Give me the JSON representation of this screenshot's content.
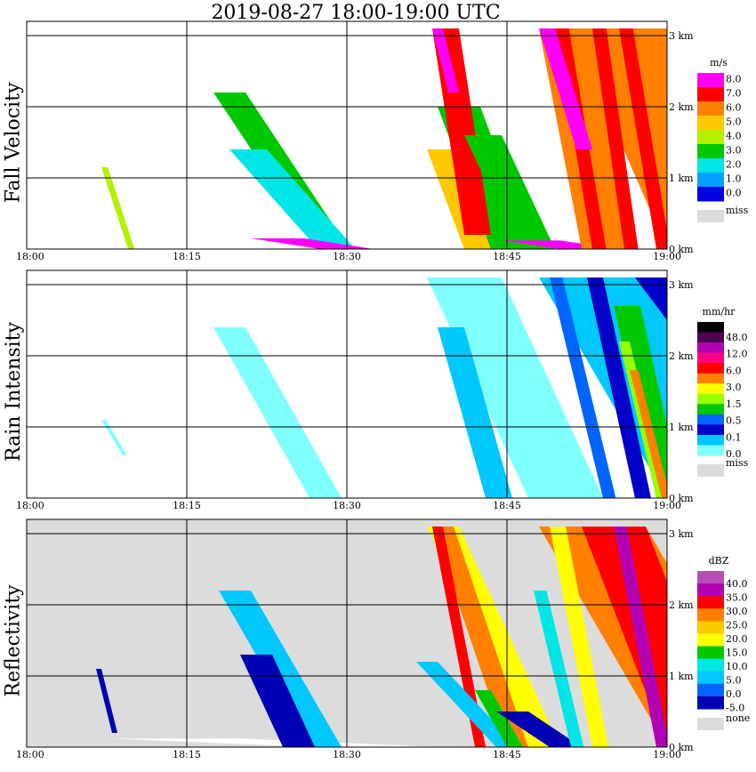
{
  "title": "2019-08-27   18:00-19:00 UTC",
  "chart_data": [
    {
      "type": "heatmap",
      "panel_label": "Fall Velocity",
      "x_ticks": [
        "18:00",
        "18:15",
        "18:30",
        "18:45",
        "19:00"
      ],
      "y_ticks": [
        "0 km",
        "1 km",
        "2 km",
        "3 km"
      ],
      "unit": "m/s",
      "legend": {
        "labels": [
          "8.0",
          "7.0",
          "6.0",
          "5.0",
          "4.0",
          "3.0",
          "2.0",
          "1.0",
          "0.0"
        ],
        "colors": [
          "#ff00ff",
          "#ff0000",
          "#ff8000",
          "#ffc800",
          "#b4f000",
          "#00c800",
          "#00e6e6",
          "#00a0ff",
          "#0000e0"
        ],
        "missing_label": "miss",
        "missing_color": "#dcdcdc"
      },
      "background": "#ffffff",
      "echoes": [
        {
          "t0": 7.0,
          "t1": 9.5,
          "h0": 0.0,
          "h1": 1.15,
          "w": 0.6,
          "color": "#b4f000"
        },
        {
          "t0": 17.5,
          "t1": 27.0,
          "h0": 0.05,
          "h1": 2.2,
          "w": 3.0,
          "color": "#00c800"
        },
        {
          "t0": 19.0,
          "t1": 27.0,
          "h0": 0.05,
          "h1": 1.4,
          "w": 3.5,
          "color": "#00e6e6"
        },
        {
          "t0": 21.0,
          "t1": 27.5,
          "h0": 0.0,
          "h1": 0.15,
          "w": 5.0,
          "color": "#ff00ff"
        },
        {
          "t0": 37.5,
          "t1": 41.0,
          "h0": 0.0,
          "h1": 1.4,
          "w": 4.5,
          "color": "#ffc800"
        },
        {
          "t0": 38.5,
          "t1": 43.5,
          "h0": 0.0,
          "h1": 2.0,
          "w": 4.0,
          "color": "#00c800"
        },
        {
          "t0": 38.0,
          "t1": 41.0,
          "h0": 0.2,
          "h1": 3.1,
          "w": 2.5,
          "color": "#ff0000"
        },
        {
          "t0": 38.0,
          "t1": 39.5,
          "h0": 2.2,
          "h1": 3.1,
          "w": 1.0,
          "color": "#ff00ff"
        },
        {
          "t0": 41.0,
          "t1": 46.0,
          "h0": 0.0,
          "h1": 1.6,
          "w": 3.5,
          "color": "#00c800"
        },
        {
          "t0": 44.5,
          "t1": 50.0,
          "h0": 0.0,
          "h1": 0.12,
          "w": 5.5,
          "color": "#ff00ff"
        },
        {
          "t0": 48.0,
          "t1": 52.0,
          "h0": 0.0,
          "h1": 3.1,
          "w": 5.0,
          "color": "#ff8000"
        },
        {
          "t0": 51.0,
          "t1": 60.0,
          "h0": 0.0,
          "h1": 3.1,
          "w": 9.0,
          "color": "#ff8000"
        },
        {
          "t0": 49.5,
          "t1": 53.0,
          "h0": 0.0,
          "h1": 3.1,
          "w": 1.3,
          "color": "#ff0000"
        },
        {
          "t0": 53.0,
          "t1": 56.0,
          "h0": 0.0,
          "h1": 3.1,
          "w": 1.3,
          "color": "#ff0000"
        },
        {
          "t0": 55.5,
          "t1": 59.0,
          "h0": 0.0,
          "h1": 3.1,
          "w": 1.3,
          "color": "#ff0000"
        },
        {
          "t0": 48.0,
          "t1": 51.5,
          "h0": 1.4,
          "h1": 3.1,
          "w": 1.5,
          "color": "#ff00ff"
        }
      ]
    },
    {
      "type": "heatmap",
      "panel_label": "Rain Intensity",
      "x_ticks": [
        "18:00",
        "18:15",
        "18:30",
        "18:45",
        "19:00"
      ],
      "y_ticks": [
        "0 km",
        "1 km",
        "2 km",
        "3 km"
      ],
      "unit": "mm/hr",
      "legend": {
        "labels": [
          "48.0",
          "12.0",
          "6.0",
          "3.0",
          "1.5",
          "0.5",
          "0.1",
          "0.0"
        ],
        "colors": [
          "#000000",
          "#500050",
          "#b400b4",
          "#ff0080",
          "#ff0000",
          "#ff8000",
          "#ffff00",
          "#96ff00",
          "#00c800",
          "#0064ff",
          "#0000c8",
          "#00c8ff",
          "#80ffff"
        ],
        "missing_label": "miss",
        "missing_color": "#dcdcdc"
      },
      "background": "#ffffff",
      "echoes": [
        {
          "t0": 7.0,
          "t1": 9.0,
          "h0": 0.6,
          "h1": 1.1,
          "w": 0.4,
          "color": "#80ffff"
        },
        {
          "t0": 17.5,
          "t1": 26.5,
          "h0": 0.0,
          "h1": 2.4,
          "w": 3.0,
          "color": "#80ffff"
        },
        {
          "t0": 37.5,
          "t1": 47.0,
          "h0": 0.0,
          "h1": 3.1,
          "w": 7.0,
          "color": "#80ffff"
        },
        {
          "t0": 38.5,
          "t1": 43.0,
          "h0": 0.0,
          "h1": 2.4,
          "w": 2.5,
          "color": "#00c8ff"
        },
        {
          "t0": 48.0,
          "t1": 60.0,
          "h0": 0.0,
          "h1": 3.1,
          "w": 10.0,
          "color": "#00c8ff"
        },
        {
          "t0": 49.0,
          "t1": 54.0,
          "h0": 0.0,
          "h1": 3.1,
          "w": 1.2,
          "color": "#0064ff"
        },
        {
          "t0": 52.5,
          "t1": 57.0,
          "h0": 0.0,
          "h1": 3.1,
          "w": 1.5,
          "color": "#0000c8"
        },
        {
          "t0": 55.0,
          "t1": 59.0,
          "h0": 0.0,
          "h1": 2.7,
          "w": 2.5,
          "color": "#00c800"
        },
        {
          "t0": 55.5,
          "t1": 59.0,
          "h0": 0.0,
          "h1": 2.2,
          "w": 1.0,
          "color": "#96ff00"
        },
        {
          "t0": 56.5,
          "t1": 59.5,
          "h0": 0.0,
          "h1": 1.8,
          "w": 0.8,
          "color": "#ff8000"
        },
        {
          "t0": 57.0,
          "t1": 60.0,
          "h0": 2.5,
          "h1": 3.1,
          "w": 3.0,
          "color": "#0000c8"
        }
      ]
    },
    {
      "type": "heatmap",
      "panel_label": "Reflectivity",
      "x_ticks": [
        "18:00",
        "18:15",
        "18:30",
        "18:45",
        "19:00"
      ],
      "y_ticks": [
        "0 km",
        "1 km",
        "2 km",
        "3 km"
      ],
      "unit": "dBZ",
      "legend": {
        "labels": [
          "40.0",
          "35.0",
          "30.0",
          "25.0",
          "20.0",
          "15.0",
          "10.0",
          "5.0",
          "0.0",
          "-5.0"
        ],
        "colors": [
          "#b450b4",
          "#b400b4",
          "#ff0000",
          "#ff8000",
          "#ffc800",
          "#ffff00",
          "#00c800",
          "#00e6e6",
          "#00c8ff",
          "#0064ff",
          "#0000b4"
        ],
        "missing_label": "none",
        "missing_color": "#dcdcdc"
      },
      "background": "#dcdcdc",
      "echoes": [
        {
          "t0": 6.5,
          "t1": 8.0,
          "h0": 0.2,
          "h1": 1.1,
          "w": 0.5,
          "color": "#0000b4"
        },
        {
          "t0": 8.0,
          "t1": 27.0,
          "h0": 0.0,
          "h1": 0.12,
          "w": 12.0,
          "color": "#ffffff"
        },
        {
          "t0": 18.0,
          "t1": 26.5,
          "h0": 0.0,
          "h1": 2.2,
          "w": 3.0,
          "color": "#00c8ff"
        },
        {
          "t0": 20.0,
          "t1": 24.0,
          "h0": 0.0,
          "h1": 1.3,
          "w": 3.0,
          "color": "#0000b4"
        },
        {
          "t0": 37.5,
          "t1": 47.0,
          "h0": 0.0,
          "h1": 3.1,
          "w": 3.0,
          "color": "#ffff00"
        },
        {
          "t0": 38.0,
          "t1": 45.0,
          "h0": 0.0,
          "h1": 3.1,
          "w": 2.0,
          "color": "#ff8000"
        },
        {
          "t0": 38.0,
          "t1": 42.0,
          "h0": 0.0,
          "h1": 3.1,
          "w": 1.0,
          "color": "#ff0000"
        },
        {
          "t0": 36.5,
          "t1": 44.0,
          "h0": 0.0,
          "h1": 1.2,
          "w": 2.0,
          "color": "#00c8ff"
        },
        {
          "t0": 42.0,
          "t1": 45.0,
          "h0": 0.0,
          "h1": 0.8,
          "w": 1.5,
          "color": "#00c800"
        },
        {
          "t0": 44.0,
          "t1": 49.0,
          "h0": 0.0,
          "h1": 0.5,
          "w": 3.0,
          "color": "#0000b4"
        },
        {
          "t0": 48.0,
          "t1": 60.0,
          "h0": 0.0,
          "h1": 3.1,
          "w": 10.0,
          "color": "#ff8000"
        },
        {
          "t0": 49.0,
          "t1": 53.0,
          "h0": 0.0,
          "h1": 3.1,
          "w": 1.5,
          "color": "#ffff00"
        },
        {
          "t0": 52.0,
          "t1": 60.0,
          "h0": 0.0,
          "h1": 3.1,
          "w": 6.0,
          "color": "#ff0000"
        },
        {
          "t0": 55.0,
          "t1": 59.0,
          "h0": 0.0,
          "h1": 3.1,
          "w": 1.2,
          "color": "#b400b4"
        },
        {
          "t0": 47.5,
          "t1": 51.0,
          "h0": 0.0,
          "h1": 2.2,
          "w": 1.2,
          "color": "#00e6e6"
        }
      ]
    }
  ]
}
